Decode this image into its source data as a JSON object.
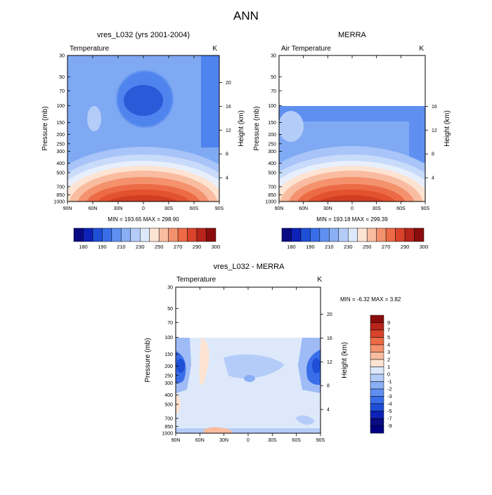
{
  "super_title": "ANN",
  "colorbar_colors": [
    "#0a0a82",
    "#0d22b8",
    "#1f4fd6",
    "#3a6ee8",
    "#5f8ff0",
    "#8aaff5",
    "#b4cdf8",
    "#dde9fb",
    "#fde3d2",
    "#f9bca0",
    "#f4926e",
    "#ec6a45",
    "#d9432a",
    "#b8241a",
    "#8a0d0d"
  ],
  "chart_data": [
    {
      "type": "contour",
      "title": "vres_L032 (yrs 2001-2004)",
      "left_label": "Temperature",
      "right_label": "K",
      "xlabel": "",
      "ylabel": "Pressure (mb)",
      "y2label": "Height (km)",
      "x_ticks": [
        "90N",
        "60N",
        "30N",
        "0",
        "30S",
        "60S",
        "90S"
      ],
      "y_ticks": [
        "30",
        "50",
        "70",
        "100",
        "150",
        "200",
        "250",
        "300",
        "400",
        "500",
        "700",
        "850",
        "1000"
      ],
      "height_ticks": [
        "4",
        "8",
        "12",
        "16",
        "20"
      ],
      "stats": "MIN = 193.65   MAX = 298.90",
      "colorbar_labels": [
        "180",
        "190",
        "210",
        "230",
        "250",
        "270",
        "290",
        "300"
      ],
      "colorbar_levels": [
        180,
        185,
        190,
        200,
        210,
        220,
        230,
        240,
        250,
        260,
        270,
        280,
        290,
        300
      ],
      "data_top_mb": 30,
      "surface_max": 298.9,
      "min_value": 193.65
    },
    {
      "type": "contour",
      "title": "MERRA",
      "left_label": "Air Temperature",
      "right_label": "K",
      "xlabel": "",
      "ylabel": "Pressure (mb)",
      "y2label": "Height (km)",
      "x_ticks": [
        "90N",
        "60N",
        "30N",
        "0",
        "30S",
        "60S",
        "90S"
      ],
      "y_ticks": [
        "30",
        "50",
        "70",
        "100",
        "150",
        "200",
        "250",
        "300",
        "400",
        "500",
        "700",
        "850",
        "1000"
      ],
      "height_ticks": [
        "4",
        "8",
        "12",
        "16"
      ],
      "stats": "MIN = 193.18   MAX = 299.39",
      "colorbar_labels": [
        "180",
        "190",
        "210",
        "230",
        "250",
        "270",
        "290",
        "300"
      ],
      "colorbar_levels": [
        180,
        185,
        190,
        200,
        210,
        220,
        230,
        240,
        250,
        260,
        270,
        280,
        290,
        300
      ],
      "data_top_mb": 100,
      "surface_max": 299.39,
      "min_value": 193.18
    },
    {
      "type": "contour",
      "title": "vres_L032 - MERRA",
      "left_label": "Temperature",
      "right_label": "K",
      "xlabel": "",
      "ylabel": "Pressure (mb)",
      "y2label": "Height (km)",
      "x_ticks": [
        "90N",
        "60N",
        "30N",
        "0",
        "30S",
        "60S",
        "90S"
      ],
      "y_ticks": [
        "30",
        "50",
        "70",
        "100",
        "150",
        "200",
        "250",
        "300",
        "400",
        "500",
        "700",
        "850",
        "1000"
      ],
      "height_ticks": [
        "4",
        "8",
        "12",
        "16",
        "20"
      ],
      "stats": "MIN =  -6.32   MAX =   3.82",
      "colorbar_labels": [
        "9",
        "7",
        "5",
        "4",
        "3",
        "2",
        "1",
        "0",
        "-1",
        "-2",
        "-3",
        "-4",
        "-5",
        "-7",
        "-9"
      ],
      "colorbar_levels": [
        -9,
        -7,
        -5,
        -4,
        -3,
        -2,
        -1,
        0,
        1,
        2,
        3,
        4,
        5,
        7,
        9
      ],
      "data_top_mb": 100,
      "min_value": -6.32,
      "max_value": 3.82
    }
  ]
}
